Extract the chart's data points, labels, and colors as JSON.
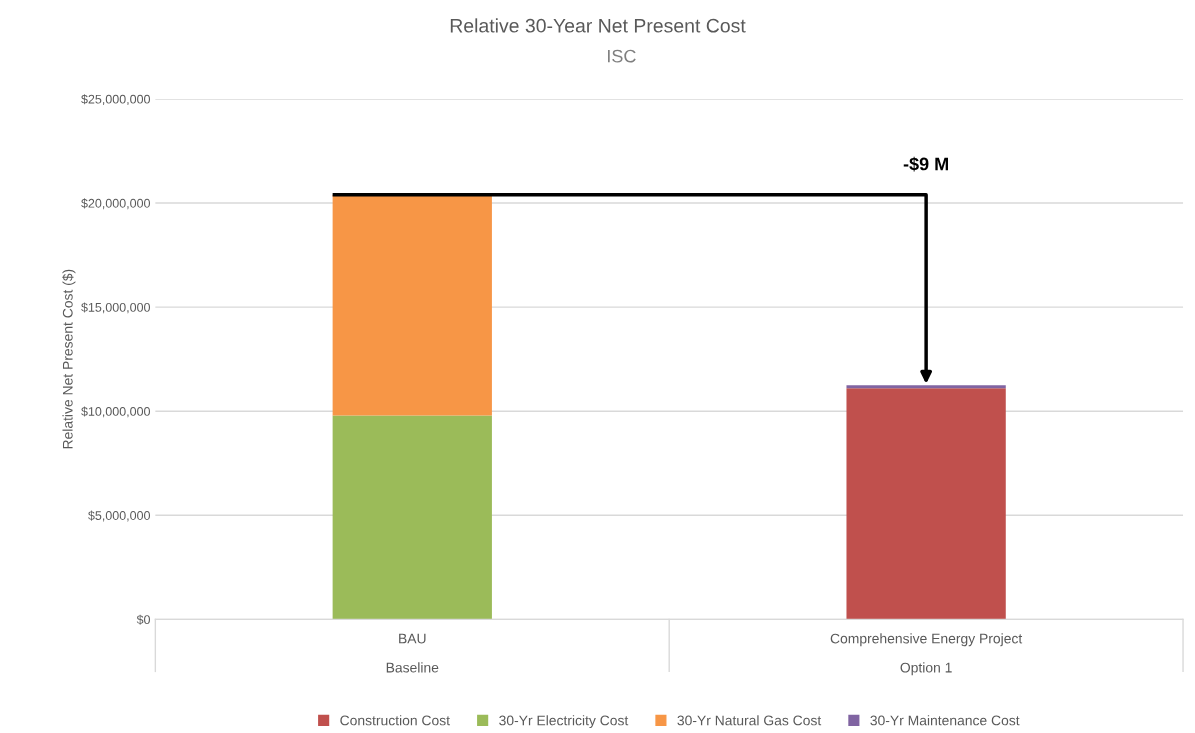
{
  "chart_data": {
    "type": "bar",
    "stacked": true,
    "title": "Relative 30-Year Net Present Cost",
    "subtitle": "ISC",
    "ylabel": "Relative Net Present Cost ($)",
    "categories": [
      "BAU\nBaseline",
      "Comprehensive Energy Project\nOption 1"
    ],
    "series": [
      {
        "name": "Construction Cost",
        "color": "#c0504d",
        "values": [
          null,
          11100000
        ]
      },
      {
        "name": "30-Yr Electricity Cost",
        "color": "#9bbb59",
        "values": [
          9800000,
          null
        ]
      },
      {
        "name": "30-Yr Natural Gas Cost",
        "color": "#f79646",
        "values": [
          10600000,
          null
        ]
      },
      {
        "name": "30-Yr Maintenance Cost",
        "color": "#8064a2",
        "values": [
          null,
          150000
        ]
      }
    ],
    "ylim": [
      0,
      25000000
    ],
    "yticks": [
      {
        "value": 0,
        "label": "$0"
      },
      {
        "value": 5000000,
        "label": "$5,000,000"
      },
      {
        "value": 10000000,
        "label": "$10,000,000"
      },
      {
        "value": 15000000,
        "label": "$15,000,000"
      },
      {
        "value": 20000000,
        "label": "$20,000,000"
      },
      {
        "value": 25000000,
        "label": "$25,000,000"
      }
    ],
    "grid": "y",
    "legend": "bottom",
    "annotations": [
      "-$9 M"
    ]
  }
}
